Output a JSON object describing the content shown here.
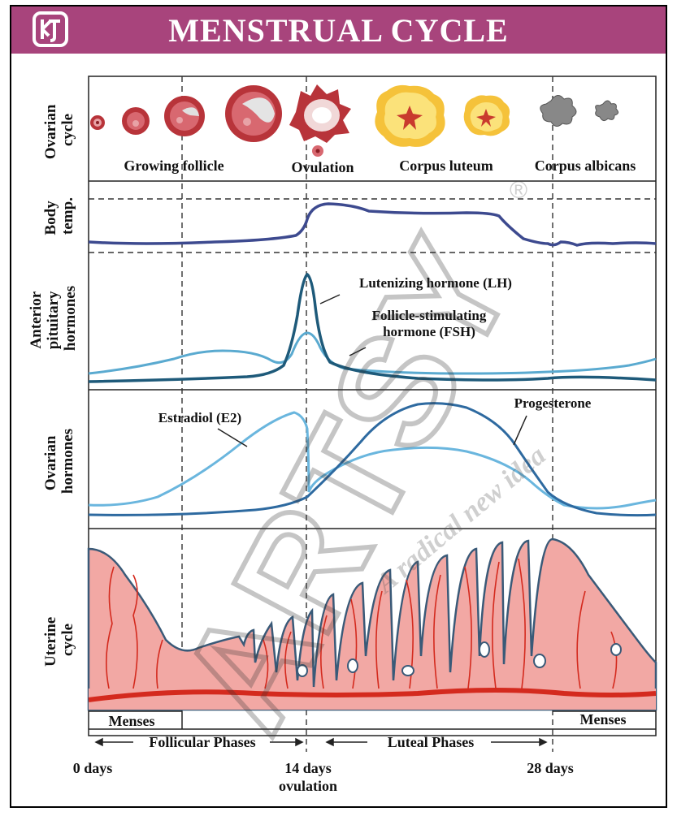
{
  "title": "MENSTRUAL CYCLE",
  "logo_text": "KT",
  "watermark": {
    "text": "ARTSY",
    "tagline": "A radical new idea",
    "mark": "®"
  },
  "rows": {
    "ovarian_cycle": [
      "Ovarian",
      "cycle"
    ],
    "body_temp": [
      "Body",
      "temp."
    ],
    "pituitary": [
      "Anterior",
      "pituitary",
      "hormones"
    ],
    "ovarian_hormones": [
      "Ovarian",
      "hormones"
    ],
    "uterine": [
      "Uterine",
      "cycle"
    ]
  },
  "stages": {
    "growing": "Growing follicle",
    "ovulation": "Ovulation",
    "luteum": "Corpus luteum",
    "albicans": "Corpus albicans"
  },
  "hormones": {
    "lh": "Lutenizing hormone (LH)",
    "fsh_1": "Follicle-stimulating",
    "fsh_2": "hormone (FSH)",
    "estradiol": "Estradiol (E2)",
    "progesterone": "Progesterone"
  },
  "phases": {
    "menses_left": "Menses",
    "menses_right": "Menses",
    "follicular": "Follicular Phases",
    "luteal": "Luteal Phases"
  },
  "axis": {
    "day0": "0 days",
    "day14": "14 days",
    "day14_sub": "ovulation",
    "day28": "28 days"
  },
  "colors": {
    "banner": "#a8447c",
    "temp_line": "#3d4a8f",
    "lh_line": "#1e5a7a",
    "fsh_line": "#5aaad0",
    "estradiol_line": "#6ab6de",
    "progesterone_line": "#2e6aa0",
    "endometrium": "#f2a8a4",
    "vessel": "#d42a1e"
  }
}
